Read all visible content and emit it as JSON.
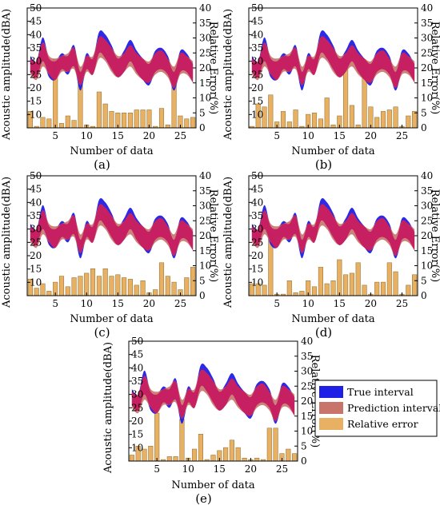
{
  "chart_data": [
    {
      "id": "a",
      "type": "area",
      "caption": "(a)",
      "xlabel": "Number of data",
      "ylabel": "Acoustic amplitude(dBA)",
      "y2label": "Relative Error(%)",
      "xlim": [
        0.5,
        27.5
      ],
      "ylim": [
        5,
        50
      ],
      "y2lim": [
        0,
        40
      ],
      "xticks": [
        5,
        10,
        15,
        20,
        25
      ],
      "yticks": [
        10,
        15,
        20,
        25,
        30,
        35,
        40,
        45,
        50
      ],
      "y2ticks": [
        0,
        5,
        10,
        15,
        20,
        25,
        30,
        35,
        40
      ],
      "x": [
        1,
        2,
        3,
        4,
        5,
        6,
        7,
        8,
        9,
        10,
        11,
        12,
        13,
        14,
        15,
        16,
        17,
        18,
        19,
        20,
        21,
        22,
        23,
        24,
        25,
        26,
        27
      ],
      "series": [
        {
          "name": "True interval",
          "upper": [
            32,
            30,
            39,
            31,
            30,
            33,
            32,
            36,
            26,
            33,
            31,
            41,
            40,
            36,
            31,
            34,
            38,
            34,
            31,
            29,
            34,
            35,
            32,
            26,
            34,
            33,
            29
          ],
          "lower": [
            26,
            24,
            30,
            24,
            23,
            27,
            25,
            28,
            19,
            27,
            25,
            33,
            31,
            27,
            24,
            26,
            30,
            26,
            23,
            21,
            26,
            27,
            25,
            19,
            26,
            26,
            22
          ]
        },
        {
          "name": "Prediction interval",
          "upper": [
            31,
            30,
            37,
            32,
            31,
            32,
            33,
            35,
            28,
            32,
            32,
            39,
            38,
            35,
            32,
            33,
            36,
            33,
            31,
            30,
            33,
            34,
            31,
            28,
            33,
            32,
            30
          ],
          "lower": [
            25,
            23,
            28,
            25,
            23,
            26,
            26,
            27,
            21,
            26,
            25,
            31,
            30,
            26,
            24,
            26,
            28,
            25,
            23,
            22,
            25,
            26,
            24,
            20,
            25,
            25,
            22
          ]
        },
        {
          "name": "Relative error",
          "values": [
            5.5,
            0.5,
            3.5,
            3,
            23,
            1.5,
            4,
            2.5,
            19,
            1,
            0.5,
            12,
            8,
            5.5,
            5,
            5,
            5,
            6,
            6,
            6,
            0.5,
            6.5,
            1,
            20,
            4,
            3,
            3.5
          ]
        }
      ]
    },
    {
      "id": "b",
      "type": "area",
      "caption": "(b)",
      "xlabel": "Number of data",
      "ylabel": "Acoustic amplitude(dBA)",
      "y2label": "Relative Error(%)",
      "xlim": [
        0.5,
        27.5
      ],
      "ylim": [
        5,
        50
      ],
      "y2lim": [
        0,
        40
      ],
      "xticks": [
        5,
        10,
        15,
        20,
        25
      ],
      "yticks": [
        10,
        15,
        20,
        25,
        30,
        35,
        40,
        45,
        50
      ],
      "y2ticks": [
        0,
        5,
        10,
        15,
        20,
        25,
        30,
        35,
        40
      ],
      "x": [
        1,
        2,
        3,
        4,
        5,
        6,
        7,
        8,
        9,
        10,
        11,
        12,
        13,
        14,
        15,
        16,
        17,
        18,
        19,
        20,
        21,
        22,
        23,
        24,
        25,
        26,
        27
      ],
      "series": [
        {
          "name": "True interval",
          "upper": [
            32,
            30,
            39,
            31,
            30,
            33,
            32,
            36,
            26,
            33,
            31,
            41,
            40,
            36,
            31,
            34,
            38,
            34,
            31,
            29,
            34,
            35,
            32,
            26,
            34,
            33,
            29
          ],
          "lower": [
            26,
            24,
            30,
            24,
            23,
            27,
            25,
            28,
            19,
            27,
            25,
            33,
            31,
            27,
            24,
            26,
            30,
            26,
            23,
            21,
            26,
            27,
            25,
            19,
            26,
            26,
            22
          ]
        },
        {
          "name": "Prediction interval",
          "upper": [
            31,
            30,
            37,
            32,
            31,
            32,
            33,
            35,
            28,
            32,
            32,
            39,
            38,
            35,
            32,
            33,
            36,
            33,
            31,
            30,
            33,
            34,
            31,
            28,
            33,
            32,
            30
          ],
          "lower": [
            25,
            23,
            28,
            25,
            23,
            26,
            26,
            27,
            21,
            26,
            25,
            31,
            30,
            26,
            24,
            26,
            28,
            25,
            23,
            22,
            25,
            26,
            24,
            20,
            25,
            25,
            22
          ]
        },
        {
          "name": "Relative error",
          "values": [
            0.5,
            8,
            7,
            11,
            2,
            5.5,
            2,
            6,
            0.5,
            4.5,
            5,
            3,
            10,
            1,
            4,
            20,
            7.5,
            1,
            20,
            7,
            3.5,
            5.5,
            6,
            7,
            0.5,
            4,
            5.5
          ]
        }
      ]
    },
    {
      "id": "c",
      "type": "area",
      "caption": "(c)",
      "xlabel": "Number of data",
      "ylabel": "Acoustic amplitude(dBA)",
      "y2label": "Relative Error(%)",
      "xlim": [
        0.5,
        27.5
      ],
      "ylim": [
        5,
        50
      ],
      "y2lim": [
        0,
        40
      ],
      "xticks": [
        5,
        10,
        15,
        20,
        25
      ],
      "yticks": [
        10,
        15,
        20,
        25,
        30,
        35,
        40,
        45,
        50
      ],
      "y2ticks": [
        0,
        5,
        10,
        15,
        20,
        25,
        30,
        35,
        40
      ],
      "x": [
        1,
        2,
        3,
        4,
        5,
        6,
        7,
        8,
        9,
        10,
        11,
        12,
        13,
        14,
        15,
        16,
        17,
        18,
        19,
        20,
        21,
        22,
        23,
        24,
        25,
        26,
        27
      ],
      "series": [
        {
          "name": "True interval",
          "upper": [
            32,
            30,
            39,
            31,
            30,
            33,
            32,
            36,
            26,
            33,
            31,
            41,
            40,
            36,
            31,
            34,
            38,
            34,
            31,
            29,
            34,
            35,
            32,
            26,
            34,
            33,
            29
          ],
          "lower": [
            26,
            24,
            30,
            24,
            23,
            27,
            25,
            28,
            19,
            27,
            25,
            33,
            31,
            27,
            24,
            26,
            30,
            26,
            23,
            21,
            26,
            27,
            25,
            19,
            26,
            26,
            22
          ]
        },
        {
          "name": "Prediction interval",
          "upper": [
            31,
            30,
            37,
            32,
            31,
            32,
            33,
            35,
            28,
            32,
            32,
            39,
            38,
            35,
            32,
            33,
            36,
            33,
            31,
            30,
            33,
            34,
            31,
            28,
            33,
            32,
            30
          ],
          "lower": [
            25,
            23,
            28,
            25,
            23,
            26,
            26,
            27,
            21,
            26,
            25,
            31,
            30,
            26,
            24,
            26,
            28,
            25,
            23,
            22,
            25,
            26,
            24,
            20,
            25,
            25,
            22
          ]
        },
        {
          "name": "Relative error",
          "values": [
            5.5,
            2.5,
            4,
            1.5,
            4.5,
            6.5,
            3,
            6,
            6.5,
            7.5,
            9,
            6.5,
            9,
            6.5,
            7,
            6,
            5.5,
            3.5,
            5,
            1,
            2,
            11,
            6.5,
            4.5,
            2,
            6,
            9.5
          ]
        }
      ]
    },
    {
      "id": "d",
      "type": "area",
      "caption": "(d)",
      "xlabel": "Number of data",
      "ylabel": "Acoustic amplitude(dBA)",
      "y2label": "Relative Error(%)",
      "xlim": [
        0.5,
        27.5
      ],
      "ylim": [
        5,
        50
      ],
      "y2lim": [
        0,
        40
      ],
      "xticks": [
        5,
        10,
        15,
        20,
        25
      ],
      "yticks": [
        10,
        15,
        20,
        25,
        30,
        35,
        40,
        45,
        50
      ],
      "y2ticks": [
        0,
        5,
        10,
        15,
        20,
        25,
        30,
        35,
        40
      ],
      "x": [
        1,
        2,
        3,
        4,
        5,
        6,
        7,
        8,
        9,
        10,
        11,
        12,
        13,
        14,
        15,
        16,
        17,
        18,
        19,
        20,
        21,
        22,
        23,
        24,
        25,
        26,
        27
      ],
      "series": [
        {
          "name": "True interval",
          "upper": [
            32,
            30,
            39,
            31,
            30,
            33,
            32,
            36,
            26,
            33,
            31,
            41,
            40,
            36,
            31,
            34,
            38,
            34,
            31,
            29,
            34,
            35,
            32,
            26,
            34,
            33,
            29
          ],
          "lower": [
            26,
            24,
            30,
            24,
            23,
            27,
            25,
            28,
            19,
            27,
            25,
            33,
            31,
            27,
            24,
            26,
            30,
            26,
            23,
            21,
            26,
            27,
            25,
            19,
            26,
            26,
            22
          ]
        },
        {
          "name": "Prediction interval",
          "upper": [
            31,
            30,
            37,
            32,
            31,
            32,
            33,
            35,
            28,
            32,
            32,
            39,
            38,
            35,
            32,
            33,
            36,
            33,
            31,
            30,
            33,
            34,
            31,
            28,
            33,
            32,
            30
          ],
          "lower": [
            25,
            23,
            28,
            25,
            23,
            26,
            26,
            27,
            21,
            26,
            25,
            31,
            30,
            26,
            24,
            26,
            28,
            25,
            23,
            22,
            25,
            26,
            24,
            20,
            25,
            25,
            22
          ]
        },
        {
          "name": "Relative error",
          "values": [
            4,
            4,
            3.5,
            21,
            0.5,
            0.5,
            5,
            1,
            1.5,
            5,
            3,
            9.5,
            4,
            5,
            12,
            7,
            7.5,
            11,
            3.5,
            0.5,
            4.5,
            4.5,
            11,
            8,
            0.5,
            3.5,
            7
          ]
        }
      ]
    },
    {
      "id": "e",
      "type": "area",
      "caption": "(e)",
      "xlabel": "Number of data",
      "ylabel": "Acoustic amplitude(dBA)",
      "y2label": "Relative Error(%)",
      "xlim": [
        0.5,
        27.5
      ],
      "ylim": [
        5,
        50
      ],
      "y2lim": [
        0,
        40
      ],
      "xticks": [
        5,
        10,
        15,
        20,
        25
      ],
      "yticks": [
        10,
        15,
        20,
        25,
        30,
        35,
        40,
        45,
        50
      ],
      "y2ticks": [
        0,
        5,
        10,
        15,
        20,
        25,
        30,
        35,
        40
      ],
      "x": [
        1,
        2,
        3,
        4,
        5,
        6,
        7,
        8,
        9,
        10,
        11,
        12,
        13,
        14,
        15,
        16,
        17,
        18,
        19,
        20,
        21,
        22,
        23,
        24,
        25,
        26,
        27
      ],
      "series": [
        {
          "name": "True interval",
          "upper": [
            32,
            30,
            39,
            31,
            30,
            33,
            32,
            36,
            26,
            33,
            31,
            41,
            40,
            36,
            31,
            34,
            38,
            34,
            31,
            29,
            34,
            35,
            32,
            26,
            34,
            33,
            29
          ],
          "lower": [
            26,
            24,
            30,
            24,
            23,
            27,
            25,
            28,
            19,
            27,
            25,
            33,
            31,
            27,
            24,
            26,
            30,
            26,
            23,
            21,
            26,
            27,
            25,
            19,
            26,
            26,
            22
          ]
        },
        {
          "name": "Prediction interval",
          "upper": [
            31,
            30,
            37,
            32,
            31,
            32,
            33,
            35,
            28,
            32,
            32,
            39,
            38,
            35,
            32,
            33,
            36,
            33,
            31,
            30,
            33,
            34,
            31,
            28,
            33,
            32,
            30
          ],
          "lower": [
            25,
            23,
            28,
            25,
            23,
            26,
            26,
            27,
            21,
            26,
            25,
            31,
            30,
            26,
            24,
            26,
            28,
            25,
            23,
            22,
            25,
            26,
            24,
            20,
            25,
            25,
            22
          ]
        },
        {
          "name": "Relative error",
          "values": [
            2,
            5,
            4,
            5,
            16,
            0.5,
            1.5,
            1.5,
            14,
            1,
            4,
            9,
            0.5,
            2,
            3.5,
            4.5,
            7,
            4.5,
            1,
            0.5,
            1,
            0.5,
            11,
            11,
            2.5,
            4,
            2.5
          ]
        }
      ]
    }
  ],
  "legend": {
    "placement": "right of panel (e)",
    "items": [
      {
        "label": "True interval",
        "color": "#1f1fe6"
      },
      {
        "label": "Prediction interval",
        "color": "#c8746a"
      },
      {
        "label": "Relative error",
        "color": "#e8b062"
      }
    ]
  },
  "colors": {
    "true_interval": "#1f1fe6",
    "prediction_interval": "#c8746a",
    "overlap": "#c8125e",
    "relative_error": "#e8b062"
  }
}
